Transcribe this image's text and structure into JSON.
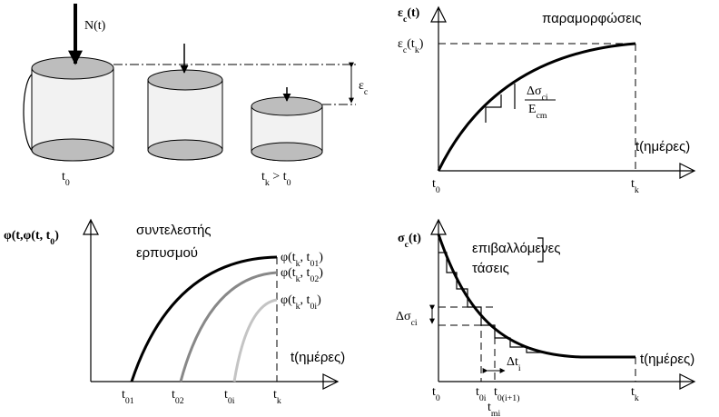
{
  "cylinders": {
    "load": [
      "N(t)"
    ],
    "strain": [
      "ε",
      "c"
    ],
    "t0": [
      "t",
      "0"
    ],
    "tk_gt_t0": [
      "t",
      "k",
      " > t",
      "0"
    ]
  },
  "strain_plot": {
    "y_label": [
      "ε",
      "c",
      "(t)"
    ],
    "title": [
      "παραμορφώσεις"
    ],
    "y_mark": [
      "ε",
      "c",
      "(t",
      "k",
      ")"
    ],
    "fraction_num": [
      "Δσ",
      "ci"
    ],
    "fraction_den": [
      "E",
      "cm"
    ],
    "x_label": [
      "t(ημέρες)"
    ],
    "t0": [
      "t",
      "0"
    ],
    "tk": [
      "t",
      "k"
    ]
  },
  "creep_plot": {
    "y_label": [
      "φ(t,φ(t, t",
      "0",
      ")"
    ],
    "title_1": [
      "συντελεστής"
    ],
    "title_2": [
      "ερπυσμού"
    ],
    "curve_1": [
      "φ(t",
      "k",
      ", t",
      "01",
      ")"
    ],
    "curve_2": [
      "φ(t",
      "k",
      ", t",
      "02",
      ")"
    ],
    "curve_3": [
      "φ(t",
      "k",
      ", t",
      "0i",
      ")"
    ],
    "x_label": [
      "t(ημέρες)"
    ],
    "t01": [
      "t",
      "01"
    ],
    "t02": [
      "t",
      "02"
    ],
    "t0i": [
      "t",
      "0i"
    ],
    "tk": [
      "t",
      "k"
    ]
  },
  "stress_plot": {
    "y_label": [
      "σ",
      "c",
      "(t)"
    ],
    "title_1": [
      "επιβαλλόμενες"
    ],
    "title_2": [
      "τάσεις"
    ],
    "delta_sigma": [
      "Δσ",
      "ci"
    ],
    "delta_t": [
      "Δt",
      "i"
    ],
    "x_label": [
      "t(ημέρες)"
    ],
    "t0": [
      "t",
      "0"
    ],
    "t0i": [
      "t",
      "0i"
    ],
    "t0i1": [
      "t",
      "0(i+1)"
    ],
    "tmi": [
      "t",
      "mi"
    ],
    "tk": [
      "t",
      "k"
    ]
  }
}
